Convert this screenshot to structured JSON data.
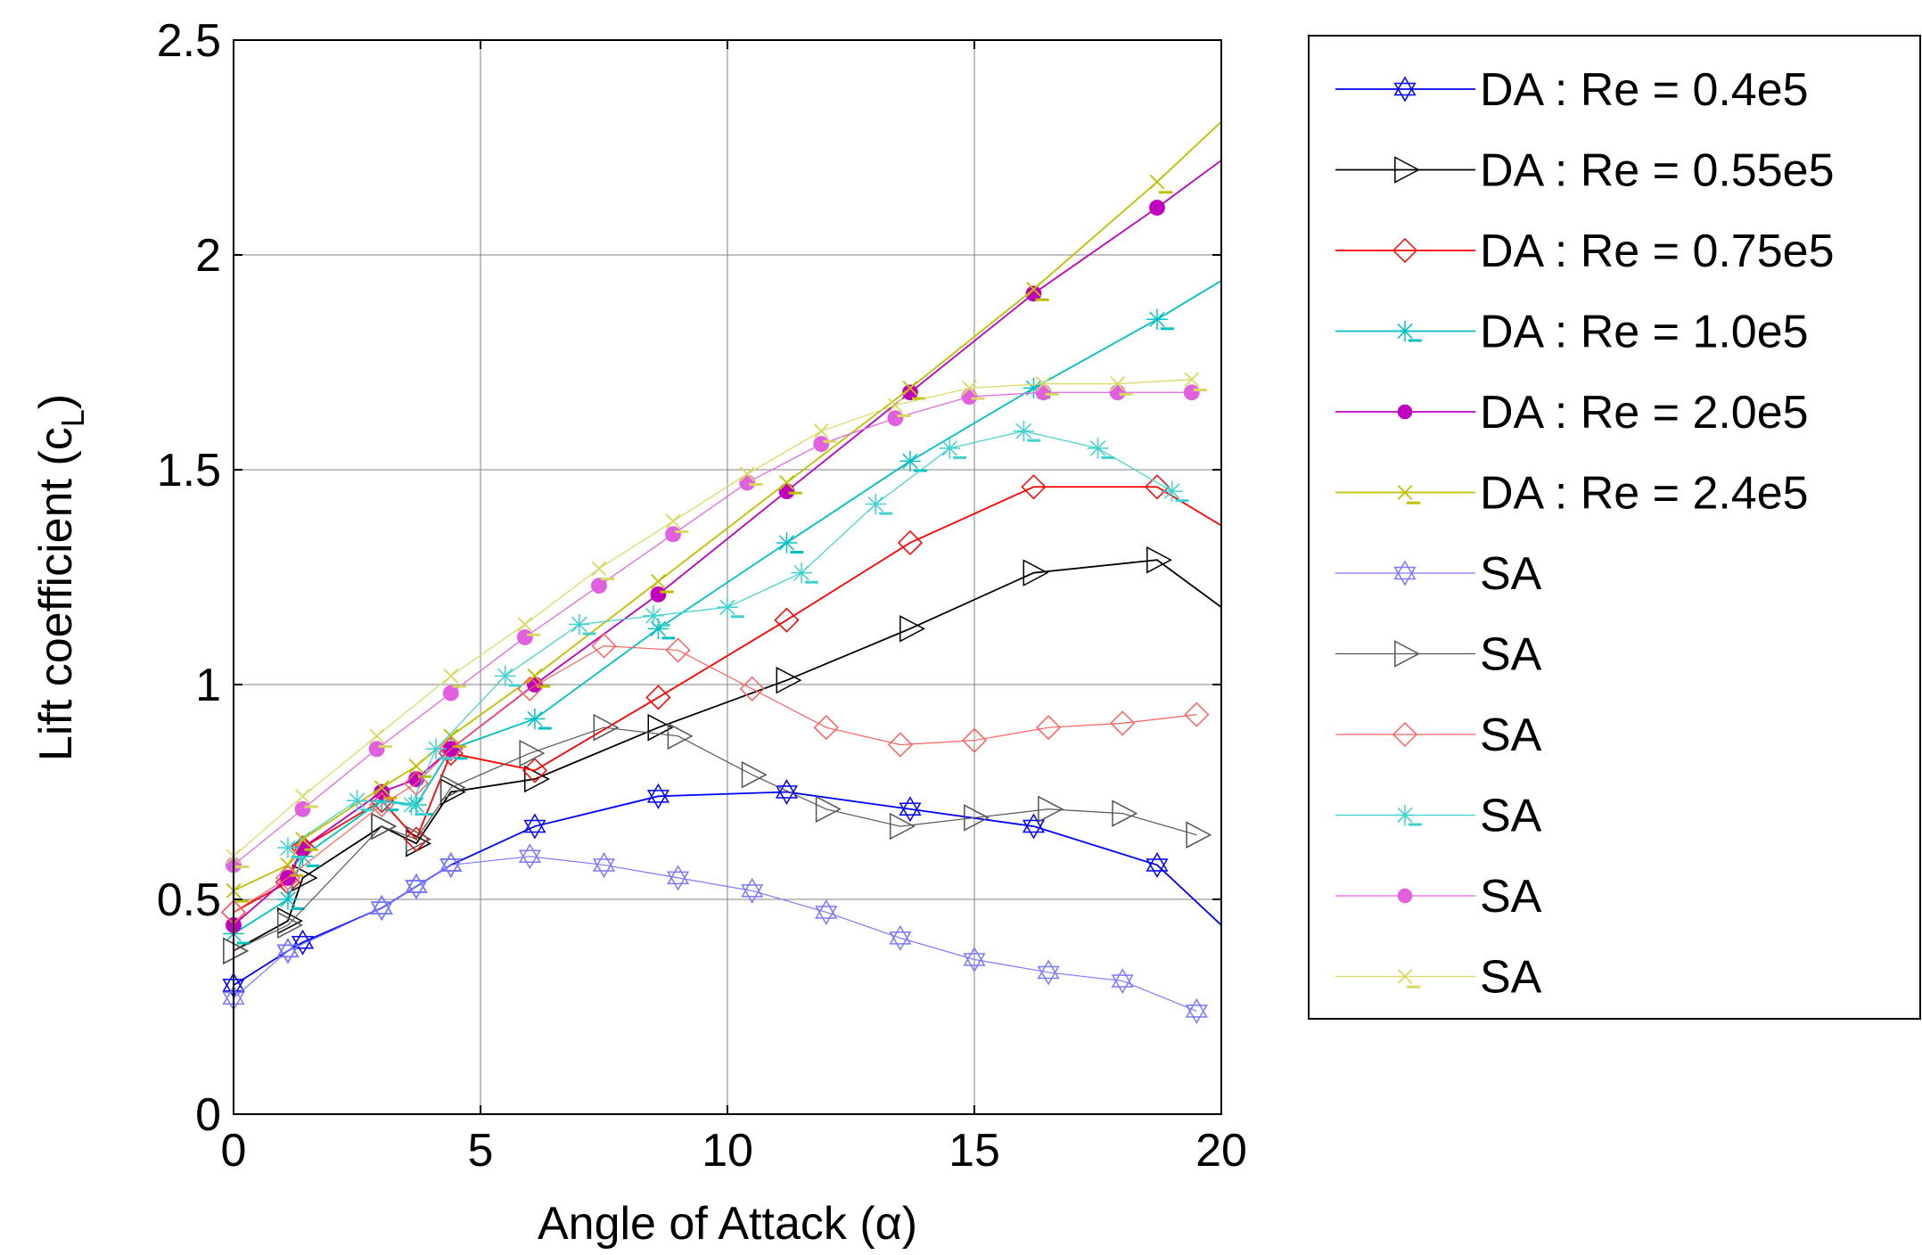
{
  "chart_data": {
    "type": "line",
    "xlabel": "Angle of Attack (α)",
    "ylabel_main": "Lift coefficient (c",
    "ylabel_sub": "L",
    "ylabel_close": ")",
    "xlim": [
      0,
      20
    ],
    "ylim": [
      0,
      2.5
    ],
    "xticks": [
      0,
      5,
      10,
      15,
      20
    ],
    "yticks": [
      0,
      0.5,
      1,
      1.5,
      2,
      2.5
    ],
    "xtick_labels": [
      "0",
      "5",
      "10",
      "15",
      "20"
    ],
    "ytick_labels": [
      "0",
      "0.5",
      "1",
      "1.5",
      "2",
      "2.5"
    ],
    "grid": true,
    "legend_position": "outside-right",
    "series": [
      {
        "name": "DA : Re = 0.4e5",
        "color": "#0000ff",
        "marker": "hexagram",
        "style": "line",
        "x": [
          0,
          1.1,
          1.4,
          3,
          3.7,
          4.4,
          6.1,
          8.6,
          11.2,
          13.7,
          16.2,
          18.7,
          20
        ],
        "y": [
          0.3,
          0.38,
          0.4,
          0.48,
          0.53,
          0.58,
          0.67,
          0.74,
          0.75,
          0.71,
          0.67,
          0.58,
          0.44
        ]
      },
      {
        "name": "DA : Re = 0.55e5",
        "color": "#000000",
        "marker": "triangle-right",
        "style": "line",
        "x": [
          0,
          1.1,
          1.4,
          3,
          3.7,
          4.4,
          6.1,
          8.6,
          11.2,
          13.7,
          16.2,
          18.7,
          20
        ],
        "y": [
          0.38,
          0.45,
          0.55,
          0.67,
          0.63,
          0.75,
          0.78,
          0.9,
          1.01,
          1.13,
          1.26,
          1.29,
          1.18
        ]
      },
      {
        "name": "DA : Re = 0.75e5",
        "color": "#ff0000",
        "marker": "diamond",
        "style": "line",
        "x": [
          0,
          1.1,
          1.4,
          3,
          3.7,
          4.4,
          6.1,
          8.6,
          11.2,
          13.7,
          16.2,
          18.7,
          20
        ],
        "y": [
          0.47,
          0.54,
          0.62,
          0.73,
          0.64,
          0.84,
          0.8,
          0.97,
          1.15,
          1.33,
          1.46,
          1.46,
          1.37
        ]
      },
      {
        "name": "DA : Re = 1.0e5",
        "color": "#00c0c0",
        "marker": "asterisk",
        "style": "line",
        "x": [
          0,
          1.1,
          1.4,
          3,
          3.7,
          4.4,
          6.1,
          8.6,
          11.2,
          13.7,
          16.2,
          18.7,
          20
        ],
        "y": [
          0.42,
          0.5,
          0.6,
          0.73,
          0.72,
          0.85,
          0.92,
          1.13,
          1.33,
          1.52,
          1.69,
          1.85,
          1.94
        ]
      },
      {
        "name": "DA : Re = 2.0e5",
        "color": "#bf00bf",
        "marker": "dot",
        "style": "line",
        "x": [
          0,
          1.1,
          1.4,
          3,
          3.7,
          4.4,
          6.1,
          8.6,
          11.2,
          13.7,
          16.2,
          18.7,
          20
        ],
        "y": [
          0.44,
          0.55,
          0.62,
          0.75,
          0.78,
          0.85,
          1.0,
          1.21,
          1.45,
          1.68,
          1.91,
          2.11,
          2.22
        ]
      },
      {
        "name": "DA : Re = 2.4e5",
        "color": "#bfbf00",
        "marker": "cross",
        "style": "line",
        "x": [
          0,
          1.1,
          1.4,
          3,
          3.7,
          4.4,
          6.1,
          8.6,
          11.2,
          13.7,
          16.2,
          18.7,
          20
        ],
        "y": [
          0.52,
          0.58,
          0.64,
          0.76,
          0.81,
          0.88,
          1.02,
          1.24,
          1.47,
          1.69,
          1.92,
          2.17,
          2.31
        ]
      },
      {
        "name": "SA",
        "color": "#7a7aff",
        "marker": "hexagram",
        "style": "thin",
        "x": [
          0,
          1.1,
          3,
          3.7,
          4.4,
          6,
          7.5,
          9,
          10.5,
          12,
          13.5,
          15,
          16.5,
          18,
          19.5
        ],
        "y": [
          0.27,
          0.38,
          0.48,
          0.53,
          0.58,
          0.6,
          0.58,
          0.55,
          0.52,
          0.47,
          0.41,
          0.36,
          0.33,
          0.31,
          0.24
        ]
      },
      {
        "name": "SA",
        "color": "#555555",
        "marker": "triangle-right",
        "style": "thin",
        "x": [
          0,
          1.1,
          3,
          3.7,
          4.4,
          6,
          7.5,
          9,
          10.5,
          12,
          13.5,
          15,
          16.5,
          18,
          19.5
        ],
        "y": [
          0.38,
          0.44,
          0.67,
          0.64,
          0.76,
          0.84,
          0.9,
          0.88,
          0.79,
          0.71,
          0.67,
          0.69,
          0.71,
          0.7,
          0.65
        ]
      },
      {
        "name": "SA",
        "color": "#ff6060",
        "marker": "diamond",
        "style": "thin",
        "x": [
          0,
          1.1,
          3,
          3.7,
          4.4,
          6,
          7.5,
          9,
          10.5,
          12,
          13.5,
          15,
          16.5,
          18,
          19.5
        ],
        "y": [
          0.47,
          0.55,
          0.72,
          0.77,
          0.85,
          0.99,
          1.09,
          1.08,
          0.99,
          0.9,
          0.86,
          0.87,
          0.9,
          0.91,
          0.93
        ]
      },
      {
        "name": "SA",
        "color": "#40d0d0",
        "marker": "asterisk",
        "style": "thin",
        "x": [
          1.1,
          2.5,
          3.6,
          4.1,
          5.5,
          7,
          8.5,
          10,
          11.5,
          13,
          14.5,
          16,
          17.5,
          19
        ],
        "y": [
          0.62,
          0.73,
          0.72,
          0.85,
          1.02,
          1.14,
          1.16,
          1.18,
          1.26,
          1.42,
          1.55,
          1.59,
          1.55,
          1.45
        ]
      },
      {
        "name": "SA",
        "color": "#e060e0",
        "marker": "dot",
        "style": "thin",
        "x": [
          0,
          1.4,
          2.9,
          4.4,
          5.9,
          7.4,
          8.9,
          10.4,
          11.9,
          13.4,
          14.9,
          16.4,
          17.9,
          19.4
        ],
        "y": [
          0.58,
          0.71,
          0.85,
          0.98,
          1.11,
          1.23,
          1.35,
          1.47,
          1.56,
          1.62,
          1.67,
          1.68,
          1.68,
          1.68
        ]
      },
      {
        "name": "SA",
        "color": "#d8d860",
        "marker": "cross",
        "style": "thin",
        "x": [
          0,
          1.4,
          2.9,
          4.4,
          5.9,
          7.4,
          8.9,
          10.4,
          11.9,
          13.4,
          14.9,
          16.4,
          17.9,
          19.4
        ],
        "y": [
          0.6,
          0.74,
          0.88,
          1.02,
          1.14,
          1.27,
          1.38,
          1.49,
          1.59,
          1.65,
          1.69,
          1.7,
          1.7,
          1.71
        ]
      }
    ]
  }
}
